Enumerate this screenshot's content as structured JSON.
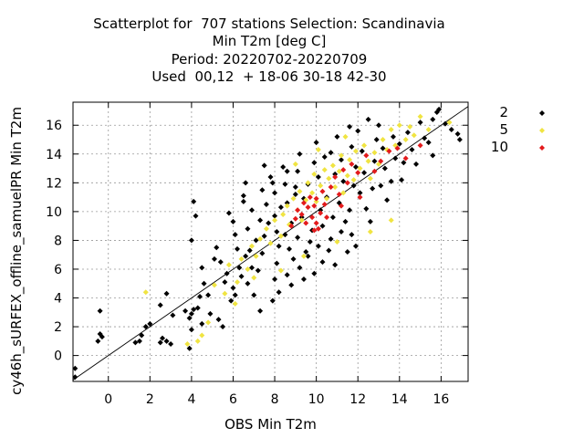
{
  "chart_data": {
    "type": "scatter",
    "title": [
      "Scatterplot for  707 stations Selection: Scandinavia",
      "Min T2m [deg C]",
      "Period: 20220702-20220709",
      "Used  00,12  + 18-06 30-18 42-30"
    ],
    "xlabel": "OBS Min T2m",
    "ylabel": "cy46h_sURFEX_offline_samuelPR Min T2m",
    "xlim": [
      -1.7,
      17.3
    ],
    "ylim": [
      -1.8,
      17.6
    ],
    "xticks": [
      0,
      2,
      4,
      6,
      8,
      10,
      12,
      14,
      16
    ],
    "yticks": [
      0,
      2,
      4,
      6,
      8,
      10,
      12,
      14,
      16
    ],
    "grid": true,
    "diagonal_line": true,
    "legend_position": "right",
    "series": [
      {
        "name": "2",
        "color": "#000000",
        "points": [
          [
            -1.6,
            -0.9
          ],
          [
            -1.6,
            -1.5
          ],
          [
            -0.4,
            3.1
          ],
          [
            -0.4,
            1.5
          ],
          [
            -0.5,
            1.0
          ],
          [
            -0.3,
            1.3
          ],
          [
            1.6,
            1.4
          ],
          [
            1.5,
            1.0
          ],
          [
            1.3,
            0.9
          ],
          [
            1.8,
            2.0
          ],
          [
            2.0,
            2.2
          ],
          [
            2.5,
            0.9
          ],
          [
            2.6,
            1.2
          ],
          [
            2.5,
            3.5
          ],
          [
            2.8,
            4.3
          ],
          [
            3.1,
            2.8
          ],
          [
            2.8,
            1.0
          ],
          [
            3.0,
            0.8
          ],
          [
            3.7,
            3.1
          ],
          [
            3.9,
            2.6
          ],
          [
            4.0,
            2.9
          ],
          [
            4.1,
            3.2
          ],
          [
            4.0,
            1.8
          ],
          [
            3.9,
            0.5
          ],
          [
            4.0,
            8.0
          ],
          [
            4.1,
            10.7
          ],
          [
            4.2,
            9.7
          ],
          [
            4.5,
            6.1
          ],
          [
            4.6,
            5.0
          ],
          [
            4.4,
            4.1
          ],
          [
            4.3,
            3.3
          ],
          [
            4.5,
            2.2
          ],
          [
            4.9,
            2.9
          ],
          [
            4.8,
            4.2
          ],
          [
            5.1,
            6.7
          ],
          [
            5.2,
            7.5
          ],
          [
            5.4,
            6.5
          ],
          [
            5.6,
            5.1
          ],
          [
            5.3,
            2.5
          ],
          [
            5.5,
            2.0
          ],
          [
            5.8,
            9.9
          ],
          [
            6.0,
            9.3
          ],
          [
            6.1,
            8.4
          ],
          [
            6.2,
            7.4
          ],
          [
            6.3,
            6.1
          ],
          [
            6.4,
            5.5
          ],
          [
            6.0,
            4.7
          ],
          [
            6.1,
            4.2
          ],
          [
            5.9,
            3.8
          ],
          [
            6.5,
            10.7
          ],
          [
            6.6,
            12.0
          ],
          [
            6.5,
            11.1
          ],
          [
            6.7,
            8.8
          ],
          [
            6.8,
            7.3
          ],
          [
            6.9,
            6.1
          ],
          [
            6.7,
            5.0
          ],
          [
            7.0,
            4.2
          ],
          [
            7.3,
            3.1
          ],
          [
            7.2,
            5.9
          ],
          [
            7.4,
            7.1
          ],
          [
            7.5,
            8.3
          ],
          [
            7.3,
            9.4
          ],
          [
            7.6,
            10.5
          ],
          [
            7.4,
            11.5
          ],
          [
            7.5,
            13.2
          ],
          [
            7.8,
            12.4
          ],
          [
            8.0,
            11.3
          ],
          [
            8.0,
            9.7
          ],
          [
            8.1,
            8.6
          ],
          [
            8.2,
            7.6
          ],
          [
            8.1,
            6.4
          ],
          [
            8.0,
            5.3
          ],
          [
            8.2,
            4.4
          ],
          [
            7.9,
            3.8
          ],
          [
            8.4,
            13.1
          ],
          [
            8.6,
            12.8
          ],
          [
            8.5,
            11.9
          ],
          [
            8.6,
            10.6
          ],
          [
            8.8,
            9.2
          ],
          [
            8.5,
            8.4
          ],
          [
            8.7,
            7.4
          ],
          [
            8.9,
            6.7
          ],
          [
            8.6,
            5.6
          ],
          [
            8.8,
            4.9
          ],
          [
            9.2,
            14.0
          ],
          [
            9.1,
            12.8
          ],
          [
            9.0,
            11.7
          ],
          [
            9.4,
            10.9
          ],
          [
            9.3,
            9.6
          ],
          [
            9.1,
            8.2
          ],
          [
            9.5,
            7.2
          ],
          [
            9.2,
            6.1
          ],
          [
            9.4,
            5.3
          ],
          [
            9.6,
            6.9
          ],
          [
            9.7,
            7.9
          ],
          [
            9.8,
            8.7
          ],
          [
            9.6,
            11.9
          ],
          [
            9.9,
            13.4
          ],
          [
            10.0,
            14.8
          ],
          [
            10.1,
            12.4
          ],
          [
            10.2,
            10.1
          ],
          [
            10.3,
            9.0
          ],
          [
            10.1,
            7.6
          ],
          [
            10.3,
            6.5
          ],
          [
            10.6,
            7.3
          ],
          [
            10.7,
            8.1
          ],
          [
            10.8,
            9.6
          ],
          [
            10.5,
            11.0
          ],
          [
            10.9,
            12.6
          ],
          [
            10.7,
            14.1
          ],
          [
            11.0,
            15.2
          ],
          [
            11.2,
            13.6
          ],
          [
            11.3,
            12.1
          ],
          [
            11.1,
            10.6
          ],
          [
            11.4,
            9.3
          ],
          [
            11.2,
            8.6
          ],
          [
            11.5,
            7.2
          ],
          [
            11.7,
            8.4
          ],
          [
            11.6,
            10.1
          ],
          [
            11.8,
            11.8
          ],
          [
            11.9,
            13.1
          ],
          [
            11.7,
            14.5
          ],
          [
            12.0,
            15.6
          ],
          [
            12.2,
            14.2
          ],
          [
            12.3,
            12.7
          ],
          [
            12.1,
            11.3
          ],
          [
            12.4,
            10.2
          ],
          [
            12.6,
            9.3
          ],
          [
            12.7,
            11.6
          ],
          [
            12.8,
            13.5
          ],
          [
            12.9,
            15.0
          ],
          [
            13.2,
            14.4
          ],
          [
            13.3,
            13.0
          ],
          [
            13.1,
            11.8
          ],
          [
            13.4,
            10.8
          ],
          [
            13.6,
            12.1
          ],
          [
            13.8,
            13.7
          ],
          [
            13.7,
            15.2
          ],
          [
            14.0,
            14.7
          ],
          [
            14.2,
            13.4
          ],
          [
            14.1,
            12.2
          ],
          [
            14.4,
            15.5
          ],
          [
            14.6,
            14.3
          ],
          [
            14.8,
            13.3
          ],
          [
            15.0,
            16.2
          ],
          [
            15.2,
            15.1
          ],
          [
            15.4,
            14.8
          ],
          [
            15.6,
            16.4
          ],
          [
            15.8,
            16.9
          ],
          [
            15.9,
            17.1
          ],
          [
            16.2,
            16.1
          ],
          [
            16.5,
            15.7
          ],
          [
            16.8,
            15.4
          ],
          [
            16.9,
            15.0
          ],
          [
            15.6,
            13.9
          ],
          [
            9.0,
            11.2
          ],
          [
            8.3,
            10.3
          ],
          [
            7.7,
            9.2
          ],
          [
            7.1,
            8.0
          ],
          [
            6.6,
            6.9
          ],
          [
            5.7,
            5.7
          ],
          [
            6.9,
            10.1
          ],
          [
            7.9,
            12.0
          ],
          [
            10.4,
            13.8
          ],
          [
            11.6,
            15.9
          ],
          [
            12.5,
            16.4
          ],
          [
            13.0,
            16.0
          ],
          [
            9.9,
            5.7
          ],
          [
            10.9,
            6.3
          ],
          [
            11.9,
            7.6
          ]
        ]
      },
      {
        "name": "5",
        "color": "#f0e442",
        "points": [
          [
            1.8,
            4.4
          ],
          [
            3.8,
            0.8
          ],
          [
            4.3,
            1.0
          ],
          [
            4.5,
            1.4
          ],
          [
            4.8,
            2.3
          ],
          [
            5.1,
            4.9
          ],
          [
            5.6,
            4.3
          ],
          [
            5.8,
            6.3
          ],
          [
            6.2,
            5.1
          ],
          [
            6.4,
            6.7
          ],
          [
            6.7,
            6.0
          ],
          [
            6.9,
            7.6
          ],
          [
            7.1,
            6.9
          ],
          [
            7.3,
            8.1
          ],
          [
            7.6,
            8.8
          ],
          [
            7.8,
            7.8
          ],
          [
            8.0,
            9.4
          ],
          [
            8.3,
            8.3
          ],
          [
            8.4,
            9.8
          ],
          [
            8.6,
            10.4
          ],
          [
            8.7,
            9.1
          ],
          [
            8.9,
            10.9
          ],
          [
            9.1,
            10.1
          ],
          [
            9.2,
            11.4
          ],
          [
            9.3,
            9.4
          ],
          [
            9.5,
            10.8
          ],
          [
            9.6,
            12.0
          ],
          [
            9.8,
            11.3
          ],
          [
            9.9,
            12.6
          ],
          [
            10.0,
            10.7
          ],
          [
            10.2,
            11.8
          ],
          [
            10.4,
            12.9
          ],
          [
            10.5,
            10.9
          ],
          [
            10.6,
            12.3
          ],
          [
            10.8,
            13.2
          ],
          [
            10.9,
            11.7
          ],
          [
            11.1,
            12.8
          ],
          [
            11.2,
            13.9
          ],
          [
            11.3,
            11.3
          ],
          [
            11.5,
            12.5
          ],
          [
            11.6,
            13.6
          ],
          [
            11.8,
            12.2
          ],
          [
            11.9,
            14.2
          ],
          [
            12.1,
            13.0
          ],
          [
            12.3,
            14.6
          ],
          [
            12.5,
            13.5
          ],
          [
            12.6,
            12.3
          ],
          [
            12.8,
            14.1
          ],
          [
            13.0,
            13.3
          ],
          [
            13.2,
            15.0
          ],
          [
            13.4,
            14.3
          ],
          [
            13.6,
            15.7
          ],
          [
            13.8,
            14.6
          ],
          [
            14.0,
            16.0
          ],
          [
            14.3,
            15.0
          ],
          [
            14.5,
            15.9
          ],
          [
            14.7,
            15.3
          ],
          [
            15.0,
            16.6
          ],
          [
            15.4,
            15.7
          ],
          [
            16.4,
            16.2
          ],
          [
            13.6,
            9.4
          ],
          [
            12.6,
            8.6
          ],
          [
            11.0,
            7.9
          ],
          [
            9.4,
            6.9
          ],
          [
            8.3,
            5.9
          ],
          [
            7.0,
            5.4
          ],
          [
            6.1,
            3.6
          ],
          [
            9.0,
            13.3
          ],
          [
            10.1,
            14.3
          ],
          [
            11.4,
            15.2
          ]
        ]
      },
      {
        "name": "10",
        "color": "#e31a1c",
        "points": [
          [
            8.8,
            9.0
          ],
          [
            9.0,
            9.5
          ],
          [
            9.1,
            10.1
          ],
          [
            9.3,
            9.8
          ],
          [
            9.4,
            10.6
          ],
          [
            9.5,
            9.2
          ],
          [
            9.6,
            10.3
          ],
          [
            9.7,
            11.0
          ],
          [
            9.8,
            9.6
          ],
          [
            9.9,
            10.4
          ],
          [
            10.0,
            10.9
          ],
          [
            10.0,
            9.2
          ],
          [
            10.1,
            8.8
          ],
          [
            10.2,
            9.9
          ],
          [
            10.3,
            11.4
          ],
          [
            10.4,
            10.5
          ],
          [
            10.5,
            9.6
          ],
          [
            10.7,
            11.7
          ],
          [
            10.9,
            12.4
          ],
          [
            11.1,
            11.2
          ],
          [
            11.3,
            12.9
          ],
          [
            11.5,
            12.0
          ],
          [
            11.7,
            13.3
          ],
          [
            12.0,
            12.7
          ],
          [
            12.4,
            13.9
          ],
          [
            12.8,
            12.8
          ],
          [
            13.1,
            13.5
          ],
          [
            13.5,
            14.2
          ],
          [
            13.9,
            14.4
          ],
          [
            14.3,
            13.7
          ],
          [
            15.0,
            14.6
          ],
          [
            12.1,
            11.0
          ],
          [
            11.2,
            10.4
          ],
          [
            9.9,
            8.7
          ]
        ]
      }
    ]
  }
}
